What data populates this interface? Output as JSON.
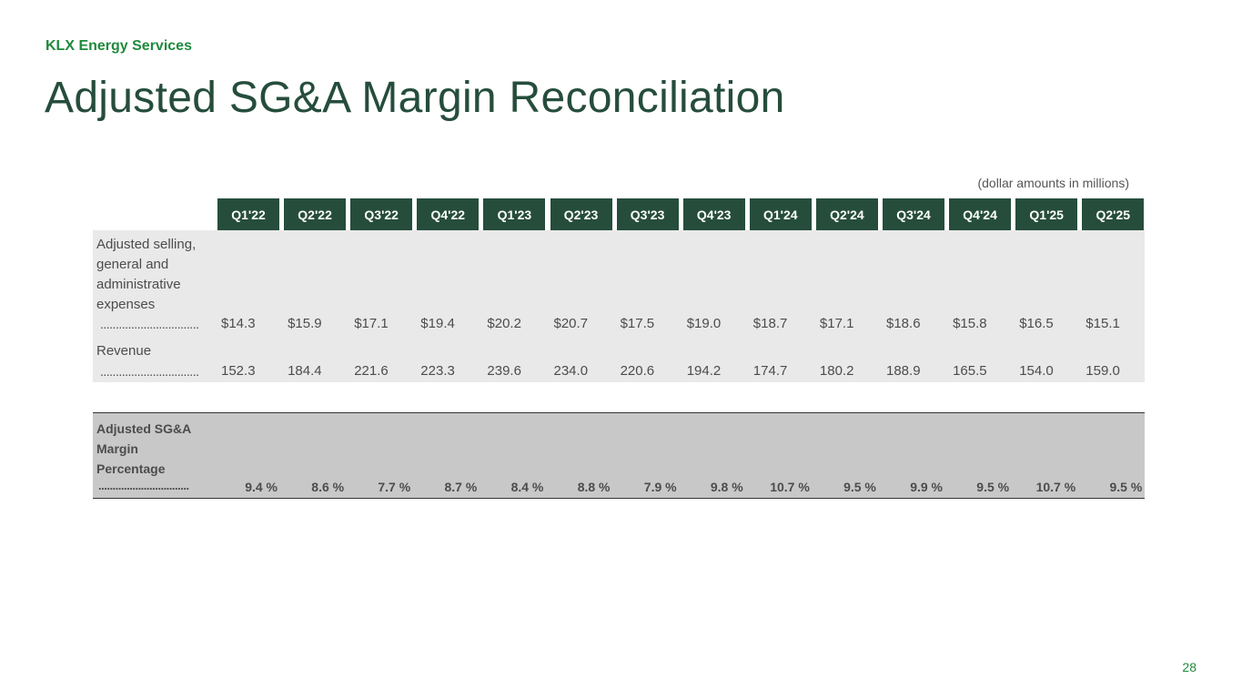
{
  "header": {
    "company": "KLX Energy Services",
    "title": "Adjusted SG&A Margin Reconciliation",
    "units_note": "(dollar amounts in millions)",
    "page_number": "28"
  },
  "table": {
    "columns": [
      "Q1'22",
      "Q2'22",
      "Q3'22",
      "Q4'22",
      "Q1'23",
      "Q2'23",
      "Q3'23",
      "Q4'23",
      "Q1'24",
      "Q2'24",
      "Q3'24",
      "Q4'24",
      "Q1'25",
      "Q2'25"
    ],
    "rows": [
      {
        "label_lines": [
          "Adjusted selling,",
          "general and",
          "administrative",
          "expenses"
        ],
        "leader": "................................",
        "values": [
          "$14.3",
          "$15.9",
          "$17.1",
          "$19.4",
          "$20.2",
          "$20.7",
          "$17.5",
          "$19.0",
          "$18.7",
          "$17.1",
          "$18.6",
          "$15.8",
          "$16.5",
          "$15.1"
        ]
      },
      {
        "label_lines": [
          "Revenue"
        ],
        "leader": "................................",
        "values": [
          "152.3",
          "184.4",
          "221.6",
          "223.3",
          "239.6",
          "234.0",
          "220.6",
          "194.2",
          "174.7",
          "180.2",
          "188.9",
          "165.5",
          "154.0",
          "159.0"
        ]
      }
    ],
    "margin": {
      "label_lines": [
        "Adjusted SG&A",
        "Margin",
        "Percentage"
      ],
      "leader": "................................",
      "values": [
        "9.4 %",
        "8.6 %",
        "7.7 %",
        "8.7 %",
        "8.4 %",
        "8.8 %",
        "7.9 %",
        "9.8 %",
        "10.7 %",
        "9.5 %",
        "9.9 %",
        "9.5 %",
        "10.7 %",
        "9.5 %"
      ]
    }
  }
}
